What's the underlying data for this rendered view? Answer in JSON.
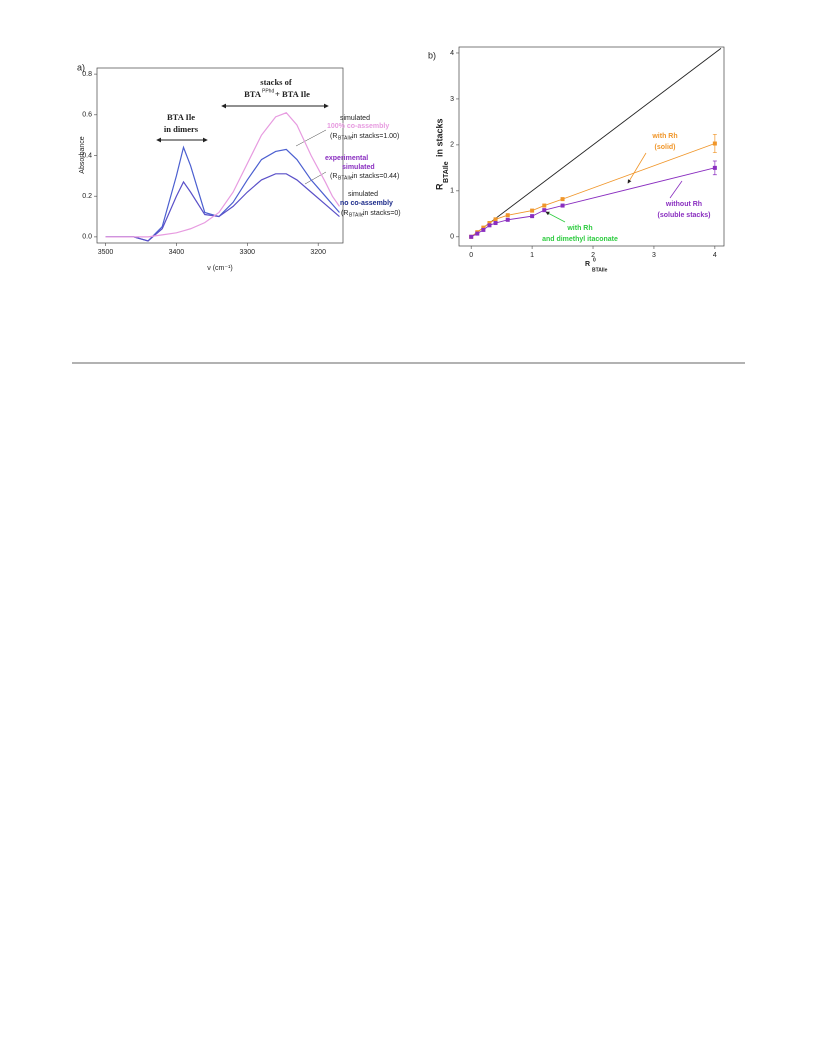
{
  "chart_data": [
    {
      "type": "line",
      "panel": "a)",
      "xlabel": "ν (cm⁻¹)",
      "ylabel": "Absorbance",
      "x": [
        3500,
        3480,
        3460,
        3450,
        3440,
        3420,
        3400,
        3390,
        3380,
        3360,
        3340,
        3320,
        3300,
        3280,
        3260,
        3245,
        3230,
        3210,
        3190,
        3180,
        3170
      ],
      "series": [
        {
          "color": "#4b5fd0",
          "values": [
            0,
            0,
            0,
            -0.01,
            -0.02,
            0.05,
            0.3,
            0.44,
            0.35,
            0.12,
            0.1,
            0.17,
            0.28,
            0.38,
            0.42,
            0.43,
            0.38,
            0.28,
            0.2,
            0.16,
            0.12
          ]
        },
        {
          "color": "#5a50c8",
          "values": [
            0,
            0,
            0,
            -0.01,
            -0.02,
            0.04,
            0.2,
            0.27,
            0.22,
            0.11,
            0.1,
            0.15,
            0.22,
            0.28,
            0.31,
            0.31,
            0.28,
            0.22,
            0.16,
            0.13,
            0.1
          ]
        },
        {
          "color": "#e79be0",
          "values": [
            0,
            0,
            0,
            0,
            0,
            0.01,
            0.02,
            0.03,
            0.04,
            0.07,
            0.12,
            0.22,
            0.36,
            0.5,
            0.59,
            0.61,
            0.55,
            0.4,
            0.27,
            0.2,
            0.15
          ]
        }
      ],
      "xlim": [
        3512,
        3165
      ],
      "ylim": [
        -0.03,
        0.83
      ],
      "xticks": [
        3500,
        3400,
        3300,
        3200
      ],
      "yticks": [
        {
          "value": 0,
          "label": "0.0"
        },
        {
          "value": 0.2,
          "label": "0.2"
        },
        {
          "value": 0.4,
          "label": "0.4"
        },
        {
          "value": 0.6,
          "label": "0.6"
        },
        {
          "value": 0.8,
          "label": "0.8"
        }
      ],
      "annotations": {
        "dimers": [
          "BTA Ile",
          "in dimers"
        ],
        "stacks": [
          "stacks of",
          "BTA",
          "PPhd",
          "+ BTA Ile"
        ],
        "full": [
          "simulated",
          "100% co-assembly",
          "(R",
          "BTAIle",
          " in stacks=1.00)"
        ],
        "exp": [
          "experimental",
          "simulated",
          "(R",
          "BTAIle",
          " in stacks=0.44)"
        ],
        "none": [
          "simulated",
          "no co-assembly",
          "(R",
          "BTAIle",
          " in stacks=0)"
        ]
      }
    },
    {
      "type": "line",
      "panel": "b)",
      "xlabel": [
        "R",
        "0",
        "BTAIle"
      ],
      "ylabel": [
        "R",
        "BTAIle",
        " in stacks"
      ],
      "series": [
        {
          "color": "#222222",
          "x": [
            0,
            4.1
          ],
          "values": [
            0,
            4.1
          ]
        },
        {
          "color": "#f0962a",
          "x": [
            0,
            0.1,
            0.2,
            0.3,
            0.4,
            0.6,
            1.0,
            1.2,
            1.5,
            4
          ],
          "values": [
            0,
            0.1,
            0.2,
            0.3,
            0.38,
            0.47,
            0.57,
            0.68,
            0.82,
            2.03
          ],
          "errors": [
            null,
            null,
            null,
            null,
            null,
            null,
            null,
            null,
            null,
            0.2
          ]
        },
        {
          "color": "#8a2fc0",
          "x": [
            0,
            0.1,
            0.2,
            0.3,
            0.4,
            0.6,
            1.0,
            1.2,
            1.5,
            4
          ],
          "values": [
            0,
            0.07,
            0.15,
            0.25,
            0.3,
            0.37,
            0.45,
            0.58,
            0.68,
            1.5
          ],
          "errors": [
            null,
            null,
            null,
            null,
            null,
            null,
            null,
            null,
            null,
            0.15
          ]
        }
      ],
      "xlim": [
        -0.2,
        4.15
      ],
      "ylim": [
        -0.2,
        4.13
      ],
      "xticks": [
        0,
        1,
        2,
        3,
        4
      ],
      "yticks": [
        0,
        1,
        2,
        3,
        4
      ],
      "annotations": {
        "solid": [
          "with Rh",
          "(solid)"
        ],
        "soluble": [
          "without Rh",
          "(soluble stacks)"
        ],
        "itaconate": [
          "with Rh",
          "and dimethyl itaconate"
        ]
      }
    }
  ]
}
